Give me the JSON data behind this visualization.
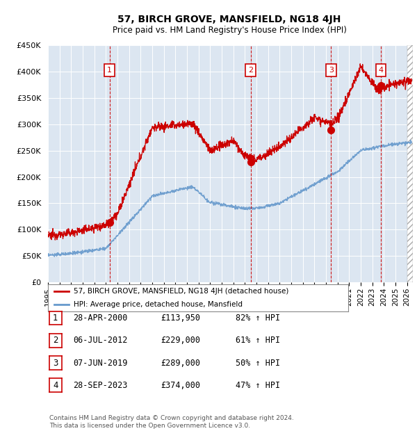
{
  "title": "57, BIRCH GROVE, MANSFIELD, NG18 4JH",
  "subtitle": "Price paid vs. HM Land Registry's House Price Index (HPI)",
  "ylabel_ticks": [
    "£0",
    "£50K",
    "£100K",
    "£150K",
    "£200K",
    "£250K",
    "£300K",
    "£350K",
    "£400K",
    "£450K"
  ],
  "ytick_values": [
    0,
    50000,
    100000,
    150000,
    200000,
    250000,
    300000,
    350000,
    400000,
    450000
  ],
  "ylim": [
    0,
    450000
  ],
  "xlim_start": 1995.0,
  "xlim_end": 2026.5,
  "sale_dates_num": [
    2000.32,
    2012.51,
    2019.44,
    2023.74
  ],
  "sale_prices": [
    113950,
    229000,
    289000,
    374000
  ],
  "sale_labels": [
    "1",
    "2",
    "3",
    "4"
  ],
  "vline_x": [
    2000.32,
    2012.51,
    2019.44,
    2023.74
  ],
  "legend_line1": "57, BIRCH GROVE, MANSFIELD, NG18 4JH (detached house)",
  "legend_line2": "HPI: Average price, detached house, Mansfield",
  "table_rows": [
    [
      "1",
      "28-APR-2000",
      "£113,950",
      "82% ↑ HPI"
    ],
    [
      "2",
      "06-JUL-2012",
      "£229,000",
      "61% ↑ HPI"
    ],
    [
      "3",
      "07-JUN-2019",
      "£289,000",
      "50% ↑ HPI"
    ],
    [
      "4",
      "28-SEP-2023",
      "£374,000",
      "47% ↑ HPI"
    ]
  ],
  "footnote": "Contains HM Land Registry data © Crown copyright and database right 2024.\nThis data is licensed under the Open Government Licence v3.0.",
  "red_color": "#cc0000",
  "blue_color": "#6699cc",
  "bg_color": "#dce6f1",
  "plot_bg": "#ffffff",
  "grid_color": "#b0b8c8"
}
